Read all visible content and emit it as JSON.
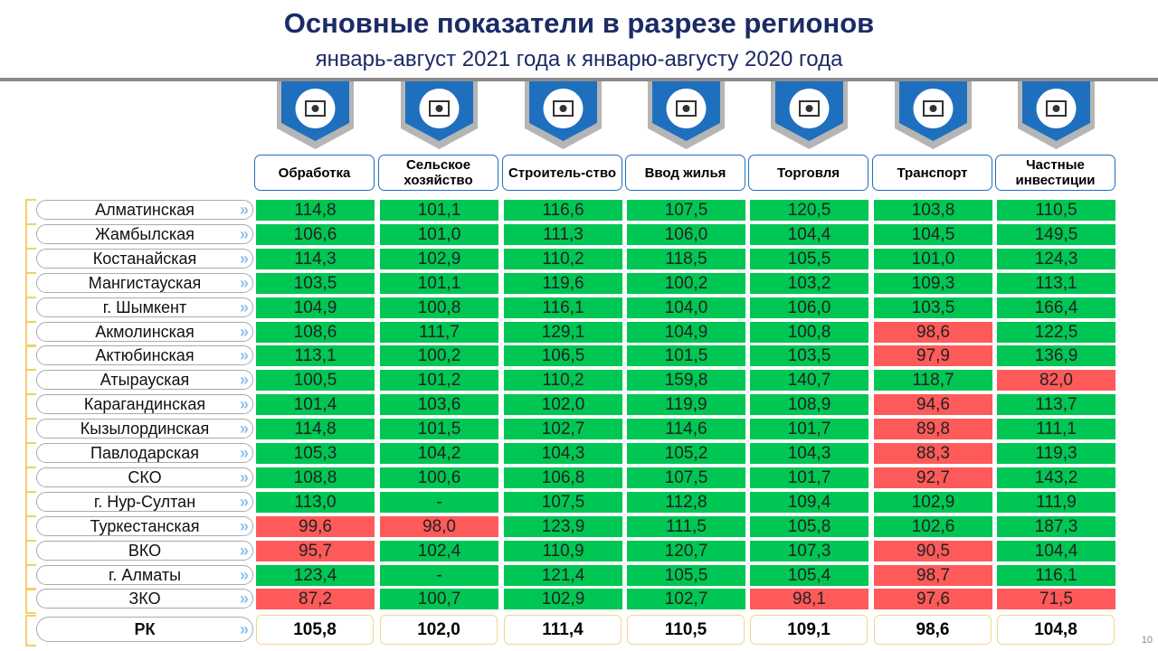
{
  "title": "Основные показатели в разрезе регионов",
  "subtitle": "январь-август 2021 года к январю-августу 2020 года",
  "columns": [
    {
      "label": "Обработка",
      "icon": "factory-icon"
    },
    {
      "label": "Сельское хозяйство",
      "icon": "tractor-icon"
    },
    {
      "label": "Строитель-ство",
      "icon": "crane-icon"
    },
    {
      "label": "Ввод жилья",
      "icon": "building-icon"
    },
    {
      "label": "Торговля",
      "icon": "globe-trade-icon"
    },
    {
      "label": "Транспорт",
      "icon": "truck-icon"
    },
    {
      "label": "Частные инвестиции",
      "icon": "money-plant-icon"
    }
  ],
  "colors": {
    "positive": "#00c653",
    "negative": "#ff5a5a"
  },
  "rows": [
    {
      "region": "Алматинская",
      "values": [
        "114,8",
        "101,1",
        "116,6",
        "107,5",
        "120,5",
        "103,8",
        "110,5"
      ]
    },
    {
      "region": "Жамбылская",
      "values": [
        "106,6",
        "101,0",
        "111,3",
        "106,0",
        "104,4",
        "104,5",
        "149,5"
      ]
    },
    {
      "region": "Костанайская",
      "values": [
        "114,3",
        "102,9",
        "110,2",
        "118,5",
        "105,5",
        "101,0",
        "124,3"
      ]
    },
    {
      "region": "Мангистауская",
      "values": [
        "103,5",
        "101,1",
        "119,6",
        "100,2",
        "103,2",
        "109,3",
        "113,1"
      ]
    },
    {
      "region": "г. Шымкент",
      "values": [
        "104,9",
        "100,8",
        "116,1",
        "104,0",
        "106,0",
        "103,5",
        "166,4"
      ]
    },
    {
      "region": "Акмолинская",
      "values": [
        "108,6",
        "111,7",
        "129,1",
        "104,9",
        "100,8",
        "98,6",
        "122,5"
      ]
    },
    {
      "region": "Актюбинская",
      "values": [
        "113,1",
        "100,2",
        "106,5",
        "101,5",
        "103,5",
        "97,9",
        "136,9"
      ]
    },
    {
      "region": "Атырауская",
      "values": [
        "100,5",
        "101,2",
        "110,2",
        "159,8",
        "140,7",
        "118,7",
        "82,0"
      ]
    },
    {
      "region": "Карагандинская",
      "values": [
        "101,4",
        "103,6",
        "102,0",
        "119,9",
        "108,9",
        "94,6",
        "113,7"
      ]
    },
    {
      "region": "Кызылординская",
      "values": [
        "114,8",
        "101,5",
        "102,7",
        "114,6",
        "101,7",
        "89,8",
        "111,1"
      ]
    },
    {
      "region": "Павлодарская",
      "values": [
        "105,3",
        "104,2",
        "104,3",
        "105,2",
        "104,3",
        "88,3",
        "119,3"
      ]
    },
    {
      "region": "СКО",
      "values": [
        "108,8",
        "100,6",
        "106,8",
        "107,5",
        "101,7",
        "92,7",
        "143,2"
      ]
    },
    {
      "region": "г. Нур-Султан",
      "values": [
        "113,0",
        "-",
        "107,5",
        "112,8",
        "109,4",
        "102,9",
        "111,9"
      ]
    },
    {
      "region": "Туркестанская",
      "values": [
        "99,6",
        "98,0",
        "123,9",
        "111,5",
        "105,8",
        "102,6",
        "187,3"
      ]
    },
    {
      "region": "ВКО",
      "values": [
        "95,7",
        "102,4",
        "110,9",
        "120,7",
        "107,3",
        "90,5",
        "104,4"
      ]
    },
    {
      "region": "г. Алматы",
      "values": [
        "123,4",
        "-",
        "121,4",
        "105,5",
        "105,4",
        "98,7",
        "116,1"
      ]
    },
    {
      "region": "ЗКО",
      "values": [
        "87,2",
        "100,7",
        "102,9",
        "102,7",
        "98,1",
        "97,6",
        "71,5"
      ]
    }
  ],
  "total": {
    "region": "РК",
    "values": [
      "105,8",
      "102,0",
      "111,4",
      "110,5",
      "109,1",
      "98,6",
      "104,8"
    ]
  },
  "page_number": "10"
}
